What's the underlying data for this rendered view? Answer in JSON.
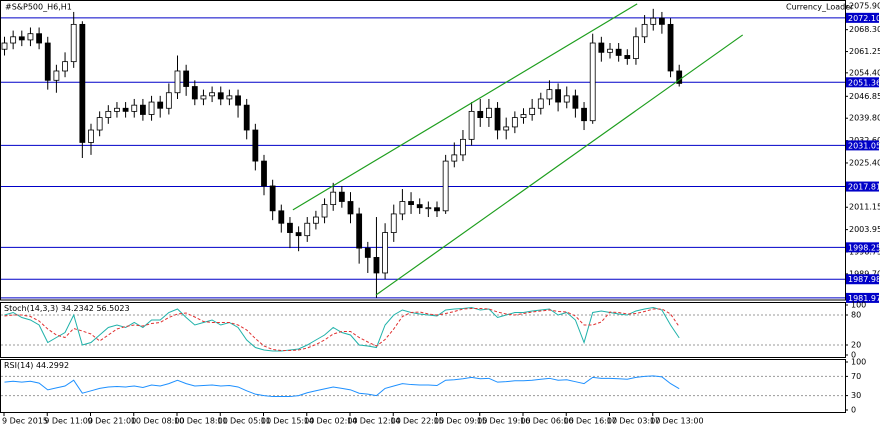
{
  "chart_data": [
    {
      "type": "candlestick",
      "title": "#S&P500_H6,H1",
      "annotation": "Currency_Loader",
      "categories": [
        "9 Dec 2015",
        null,
        null,
        null,
        null,
        "9 Dec 11:00",
        null,
        null,
        null,
        null,
        "9 Dec 21:00",
        null,
        null,
        null,
        null,
        "10 Dec 08:00",
        null,
        null,
        null,
        null,
        "10 Dec 18:00",
        null,
        null,
        null,
        null,
        "11 Dec 05:00",
        null,
        null,
        null,
        null,
        "11 Dec 15:00",
        null,
        null,
        null,
        null,
        "14 Dec 02:00",
        null,
        null,
        null,
        null,
        "14 Dec 12:00",
        null,
        null,
        null,
        null,
        "14 Dec 22:00",
        null,
        null,
        null,
        null,
        "15 Dec 09:00",
        null,
        null,
        null,
        null,
        "15 Dec 19:00",
        null,
        null,
        null,
        null,
        "16 Dec 06:00",
        null,
        null,
        null,
        null,
        "16 Dec 16:00",
        null,
        null,
        null,
        null,
        "17 Dec 03:00",
        null,
        null,
        null,
        null,
        "17 Dec 13:00",
        null,
        null,
        null
      ],
      "open": [
        2062,
        2064,
        2066,
        2065,
        2067,
        2064,
        2052,
        2055,
        2058,
        2070,
        2032,
        2036,
        2040,
        2042,
        2043,
        2042,
        2044,
        2041,
        2045,
        2043,
        2048,
        2055,
        2050,
        2046,
        2047,
        2048,
        2046,
        2047,
        2044,
        2036,
        2026,
        2018,
        2010,
        2006,
        2003,
        2002,
        2006,
        2008,
        2012,
        2016,
        2013,
        2009,
        1998,
        1995,
        1990,
        2003,
        2009,
        2013,
        2012,
        2011,
        2011,
        2010,
        2026,
        2028,
        2033,
        2042,
        2040,
        2043,
        2036,
        2037,
        2040,
        2041,
        2043,
        2046,
        2049,
        2045,
        2047,
        2043,
        2039,
        2064,
        2061,
        2062,
        2060,
        2059,
        2066,
        2070,
        2072,
        2070,
        2055
      ],
      "high": [
        2066,
        2068,
        2068,
        2069,
        2069,
        2066,
        2057,
        2061,
        2074,
        2071,
        2038,
        2042,
        2044,
        2045,
        2045,
        2046,
        2046,
        2047,
        2047,
        2051,
        2060,
        2057,
        2052,
        2049,
        2050,
        2050,
        2049,
        2049,
        2046,
        2038,
        2028,
        2020,
        2012,
        2008,
        2005,
        2008,
        2010,
        2014,
        2019,
        2018,
        2016,
        2011,
        2000,
        2008,
        2006,
        2012,
        2017,
        2016,
        2014,
        2013,
        2013,
        2028,
        2032,
        2036,
        2045,
        2046,
        2046,
        2045,
        2040,
        2042,
        2043,
        2046,
        2048,
        2052,
        2051,
        2050,
        2049,
        2045,
        2067,
        2066,
        2064,
        2064,
        2062,
        2069,
        2073,
        2075,
        2074,
        2072,
        2057
      ],
      "low": [
        2060,
        2062,
        2063,
        2063,
        2062,
        2049,
        2048,
        2053,
        2056,
        2027,
        2028,
        2034,
        2038,
        2040,
        2040,
        2040,
        2039,
        2039,
        2040,
        2041,
        2046,
        2047,
        2044,
        2044,
        2045,
        2044,
        2044,
        2040,
        2033,
        2023,
        2015,
        2007,
        2003,
        1998,
        1997,
        2000,
        2004,
        2006,
        2010,
        2011,
        2006,
        1993,
        1990,
        1982,
        1988,
        2000,
        2007,
        2009,
        2009,
        2008,
        2008,
        2009,
        2024,
        2026,
        2031,
        2037,
        2037,
        2033,
        2033,
        2035,
        2038,
        2039,
        2041,
        2044,
        2042,
        2043,
        2040,
        2036,
        2038,
        2058,
        2059,
        2058,
        2057,
        2057,
        2064,
        2068,
        2067,
        2053,
        2050
      ],
      "close": [
        2064,
        2066,
        2065,
        2067,
        2064,
        2052,
        2055,
        2058,
        2070,
        2032,
        2036,
        2040,
        2042,
        2043,
        2042,
        2044,
        2041,
        2045,
        2043,
        2048,
        2055,
        2050,
        2046,
        2047,
        2048,
        2046,
        2047,
        2044,
        2036,
        2026,
        2018,
        2010,
        2006,
        2003,
        2002,
        2006,
        2008,
        2012,
        2016,
        2013,
        2009,
        1998,
        1995,
        1990,
        2003,
        2009,
        2013,
        2012,
        2011,
        2011,
        2010,
        2026,
        2028,
        2033,
        2042,
        2040,
        2043,
        2036,
        2037,
        2040,
        2041,
        2043,
        2046,
        2049,
        2045,
        2047,
        2043,
        2039,
        2064,
        2061,
        2062,
        2060,
        2059,
        2066,
        2070,
        2072,
        2070,
        2055,
        2051
      ],
      "ylim": [
        1981.3,
        2077.2
      ],
      "yticks": [
        {
          "value": 2075.9,
          "label": "2075.90"
        },
        {
          "value": 2068.3,
          "label": "2068.30"
        },
        {
          "value": 2061.25,
          "label": "2061.25"
        },
        {
          "value": 2054.4,
          "label": "2054.40"
        },
        {
          "value": 2046.85,
          "label": "2046.85"
        },
        {
          "value": 2039.8,
          "label": "2039.80"
        },
        {
          "value": 2032.6,
          "label": "2032.60"
        },
        {
          "value": 2025.4,
          "label": "2025.40"
        },
        {
          "value": 2011.15,
          "label": "2011.15"
        },
        {
          "value": 2003.95,
          "label": "2003.95"
        },
        {
          "value": 1996.75,
          "label": "1996.75"
        },
        {
          "value": 1989.7,
          "label": "1989.70"
        }
      ],
      "levels": [
        {
          "value": 2072.1,
          "label": "2072.10"
        },
        {
          "value": 2051.36,
          "label": "2051.36"
        },
        {
          "value": 2031.05,
          "label": "2031.05"
        },
        {
          "value": 2017.81,
          "label": "2017.81"
        },
        {
          "value": 1998.25,
          "label": "1998.25"
        },
        {
          "value": 1987.98,
          "label": "1987.98"
        },
        {
          "value": 1981.97,
          "label": "1981.97"
        }
      ],
      "level_color": "#0000c8",
      "trendlines": [
        {
          "x": [
            33.4,
            73.2
          ],
          "y": [
            2010.3,
            2076.6
          ]
        },
        {
          "x": [
            43,
            85.4
          ],
          "y": [
            1982.9,
            2066.6
          ]
        }
      ],
      "trend_color": "#1e9e1e",
      "up_color": "#ffffff",
      "down_color": "#000000"
    },
    {
      "type": "line",
      "title": "Stoch(14,3,3)",
      "series": [
        {
          "color": "#20b2aa",
          "dashed": false,
          "values": [
            80,
            85,
            75,
            70,
            60,
            25,
            35,
            45,
            80,
            20,
            25,
            40,
            55,
            60,
            55,
            65,
            55,
            70,
            70,
            85,
            92,
            75,
            60,
            65,
            70,
            60,
            65,
            55,
            30,
            15,
            10,
            8,
            8,
            10,
            12,
            20,
            30,
            40,
            55,
            45,
            40,
            20,
            18,
            15,
            60,
            80,
            90,
            85,
            82,
            80,
            78,
            90,
            92,
            93,
            95,
            90,
            92,
            75,
            80,
            85,
            85,
            88,
            90,
            92,
            80,
            85,
            70,
            25,
            85,
            88,
            85,
            82,
            80,
            88,
            92,
            95,
            90,
            60,
            34.2342
          ]
        },
        {
          "color": "#e03030",
          "dashed": true,
          "values": [
            78,
            80,
            80,
            77,
            68,
            52,
            40,
            35,
            53,
            48,
            42,
            28,
            40,
            52,
            57,
            60,
            58,
            63,
            65,
            75,
            82,
            84,
            76,
            67,
            65,
            65,
            65,
            60,
            50,
            33,
            18,
            11,
            9,
            9,
            10,
            14,
            21,
            30,
            42,
            47,
            47,
            35,
            26,
            18,
            31,
            52,
            77,
            85,
            86,
            82,
            80,
            83,
            87,
            92,
            93,
            93,
            92,
            86,
            82,
            80,
            83,
            86,
            88,
            90,
            87,
            86,
            78,
            60,
            60,
            66,
            86,
            85,
            82,
            83,
            87,
            92,
            92,
            82,
            56.5023
          ]
        }
      ],
      "ylim": [
        0,
        100
      ],
      "yticks": [
        100,
        80,
        20,
        0
      ],
      "levels": [
        80,
        20
      ]
    },
    {
      "type": "line",
      "title": "RSI(14)",
      "series": [
        {
          "color": "#1e90ff",
          "dashed": false,
          "values": [
            58,
            60,
            58,
            60,
            56,
            42,
            46,
            50,
            62,
            35,
            40,
            45,
            48,
            49,
            48,
            50,
            47,
            52,
            50,
            55,
            62,
            55,
            50,
            51,
            52,
            50,
            51,
            48,
            40,
            33,
            30,
            28,
            28,
            28,
            30,
            36,
            40,
            44,
            48,
            45,
            42,
            35,
            33,
            30,
            45,
            50,
            55,
            53,
            52,
            52,
            51,
            62,
            63,
            65,
            68,
            65,
            66,
            58,
            59,
            61,
            61,
            62,
            64,
            66,
            62,
            63,
            59,
            55,
            68,
            66,
            66,
            65,
            64,
            68,
            70,
            71,
            69,
            55,
            44.2992
          ]
        }
      ],
      "ylim": [
        0,
        100
      ],
      "yticks": [
        100,
        70,
        30,
        0
      ],
      "levels": [
        70,
        30
      ]
    }
  ]
}
